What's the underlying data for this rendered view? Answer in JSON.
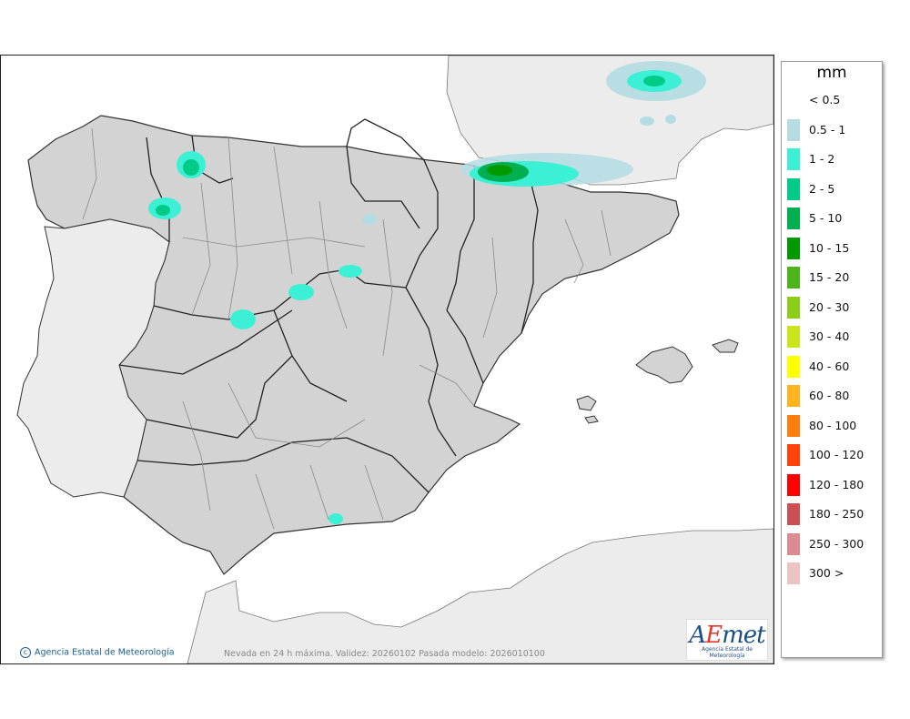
{
  "legend": {
    "unit": "mm",
    "items": [
      {
        "label": "< 0.5",
        "color": "#ffffff"
      },
      {
        "label": "0.5 - 1",
        "color": "#b3dde3"
      },
      {
        "label": "1 - 2",
        "color": "#3cf0d6"
      },
      {
        "label": "2 - 5",
        "color": "#00cc88"
      },
      {
        "label": "5 - 10",
        "color": "#00b050"
      },
      {
        "label": "10 - 15",
        "color": "#009a00"
      },
      {
        "label": "15 - 20",
        "color": "#4db51a"
      },
      {
        "label": "20 - 30",
        "color": "#8ccd1a"
      },
      {
        "label": "30 - 40",
        "color": "#c8e619"
      },
      {
        "label": "40 - 60",
        "color": "#ffff00"
      },
      {
        "label": "60 - 80",
        "color": "#ffb41e"
      },
      {
        "label": "80 - 100",
        "color": "#ff7d0d"
      },
      {
        "label": "100 - 120",
        "color": "#ff410a"
      },
      {
        "label": "120 - 180",
        "color": "#ff0000"
      },
      {
        "label": "180 - 250",
        "color": "#cd5055"
      },
      {
        "label": "250 - 300",
        "color": "#dc8c91"
      },
      {
        "label": "300 >",
        "color": "#ebc3c3"
      }
    ]
  },
  "footer": {
    "agency": "Agencia Estatal de Meteorología",
    "caption": "Nevada en 24 h máxima. Validez: 20260102 Pasada modelo: 2026010100"
  },
  "logo": {
    "text_a": "A",
    "text_e": "E",
    "text_rest": "met",
    "subtitle": "Agencia Estatal de Meteorología"
  },
  "colors": {
    "land": "#d3d3d3",
    "foreign_land": "#ececec",
    "sea": "#ffffff",
    "border": "#222222"
  }
}
